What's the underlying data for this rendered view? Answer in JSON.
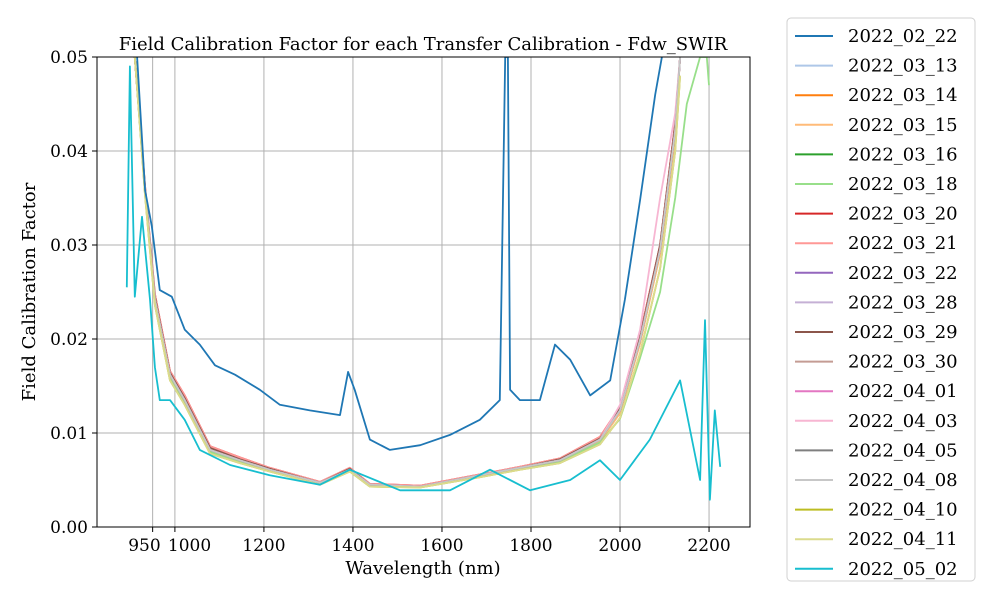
{
  "chart_data": {
    "type": "line",
    "title": "Field Calibration Factor for each Transfer Calibration - Fdw_SWIR",
    "xlabel": "Wavelength (nm)",
    "ylabel": "Field Calibration Factor",
    "xlim": [
      825,
      2292
    ],
    "ylim": [
      0,
      0.05
    ],
    "xticks": [
      950,
      1000,
      1200,
      1400,
      1600,
      1800,
      2000,
      2200
    ],
    "xtick_labels": [
      "950",
      "1000",
      "1200",
      "1400",
      "1600",
      "1800",
      "2000",
      "2200"
    ],
    "yticks": [
      0,
      0.01,
      0.02,
      0.03,
      0.04,
      0.05
    ],
    "ytick_labels": [
      "0.00",
      "0.01",
      "0.02",
      "0.03",
      "0.04",
      "0.05"
    ],
    "grid": true,
    "legend_position": "outside-right",
    "x": [
      910,
      933,
      955,
      989,
      1022,
      1079,
      1146,
      1213,
      1326,
      1393,
      1438,
      1551,
      1685,
      1775,
      1865,
      1955,
      2000,
      2045,
      2090,
      2124,
      2135
    ],
    "series": [
      {
        "name": "2022_02_22",
        "color": "#1f77b4",
        "x": [
          915,
          933,
          948,
          966,
          993,
          1022,
          1056,
          1090,
          1135,
          1191,
          1236,
          1303,
          1371,
          1389,
          1404,
          1438,
          1483,
          1551,
          1618,
          1685,
          1730,
          1742,
          1748,
          1753,
          1775,
          1820,
          1854,
          1888,
          1933,
          1978,
          2011,
          2045,
          2079,
          2094
        ],
        "y": [
          0.05,
          0.0358,
          0.032,
          0.0252,
          0.0245,
          0.021,
          0.0194,
          0.0172,
          0.0162,
          0.0146,
          0.013,
          0.0124,
          0.0119,
          0.0165,
          0.0146,
          0.0093,
          0.0082,
          0.0087,
          0.0098,
          0.0114,
          0.0135,
          0.05,
          0.05,
          0.0146,
          0.0135,
          0.0135,
          0.0194,
          0.0178,
          0.014,
          0.0156,
          0.0242,
          0.0348,
          0.046,
          0.05
        ]
      },
      {
        "name": "2022_03_13",
        "color": "#aec7e8",
        "y": [
          0.05,
          0.0358,
          0.0242,
          0.0162,
          0.0135,
          0.0082,
          0.0071,
          0.0061,
          0.0047,
          0.0061,
          0.0045,
          0.0043,
          0.0055,
          0.0063,
          0.0071,
          0.0093,
          0.0124,
          0.0199,
          0.0295,
          0.0422,
          0.05
        ]
      },
      {
        "name": "2022_03_14",
        "color": "#ff7f0e",
        "y": [
          0.05,
          0.0358,
          0.0242,
          0.0162,
          0.0135,
          0.0082,
          0.0071,
          0.0061,
          0.0047,
          0.0061,
          0.0045,
          0.0043,
          0.0055,
          0.0063,
          0.0071,
          0.0093,
          0.0124,
          0.0199,
          0.0295,
          0.0422,
          0.05
        ]
      },
      {
        "name": "2022_03_15",
        "color": "#ffbb78",
        "y": [
          0.05,
          0.0355,
          0.024,
          0.016,
          0.0133,
          0.008,
          0.007,
          0.006,
          0.0046,
          0.006,
          0.0044,
          0.0043,
          0.0054,
          0.0062,
          0.007,
          0.0091,
          0.0121,
          0.0195,
          0.029,
          0.0415,
          0.05
        ]
      },
      {
        "name": "2022_03_16",
        "color": "#2ca02c",
        "y": [
          0.05,
          0.0358,
          0.0242,
          0.0162,
          0.0135,
          0.0082,
          0.0071,
          0.0061,
          0.0047,
          0.0061,
          0.0045,
          0.0043,
          0.0055,
          0.0063,
          0.0071,
          0.0093,
          0.0124,
          0.0199,
          0.0295,
          0.0422,
          0.05
        ]
      },
      {
        "name": "2022_03_18",
        "color": "#98df8a",
        "x": [
          910,
          933,
          955,
          989,
          1022,
          1079,
          1146,
          1213,
          1326,
          1393,
          1438,
          1551,
          1685,
          1775,
          1865,
          1955,
          2000,
          2045,
          2090,
          2124,
          2150,
          2180,
          2195,
          2200
        ],
        "y": [
          0.05,
          0.0355,
          0.024,
          0.016,
          0.0133,
          0.008,
          0.007,
          0.006,
          0.0046,
          0.006,
          0.0044,
          0.0043,
          0.0054,
          0.0062,
          0.007,
          0.009,
          0.0115,
          0.018,
          0.025,
          0.035,
          0.045,
          0.05,
          0.05,
          0.047
        ]
      },
      {
        "name": "2022_03_20",
        "color": "#d62728",
        "y": [
          0.05,
          0.0362,
          0.0248,
          0.0166,
          0.014,
          0.0086,
          0.0074,
          0.0063,
          0.0048,
          0.0063,
          0.0046,
          0.0044,
          0.0056,
          0.0064,
          0.0073,
          0.0096,
          0.0128,
          0.0205,
          0.03,
          0.043,
          0.05
        ]
      },
      {
        "name": "2022_03_21",
        "color": "#ff9896",
        "y": [
          0.05,
          0.0362,
          0.0248,
          0.0166,
          0.014,
          0.0086,
          0.0074,
          0.0063,
          0.0048,
          0.0063,
          0.0046,
          0.0044,
          0.0056,
          0.0064,
          0.0073,
          0.0096,
          0.0128,
          0.0205,
          0.03,
          0.043,
          0.05
        ]
      },
      {
        "name": "2022_03_22",
        "color": "#9467bd",
        "y": [
          0.05,
          0.0358,
          0.0242,
          0.0162,
          0.0135,
          0.0082,
          0.0071,
          0.0061,
          0.0047,
          0.0061,
          0.0045,
          0.0043,
          0.0055,
          0.0063,
          0.0071,
          0.0093,
          0.0124,
          0.0199,
          0.0295,
          0.0422,
          0.05
        ]
      },
      {
        "name": "2022_03_28",
        "color": "#c5b0d5",
        "y": [
          0.05,
          0.0358,
          0.0242,
          0.0162,
          0.0135,
          0.0082,
          0.0071,
          0.0061,
          0.0047,
          0.0061,
          0.0045,
          0.0043,
          0.0055,
          0.0063,
          0.0071,
          0.0093,
          0.0124,
          0.0199,
          0.0295,
          0.0422,
          0.05
        ]
      },
      {
        "name": "2022_03_29",
        "color": "#8c564b",
        "y": [
          0.05,
          0.036,
          0.0245,
          0.0164,
          0.0137,
          0.0084,
          0.0072,
          0.0062,
          0.0047,
          0.0062,
          0.0045,
          0.0043,
          0.0055,
          0.0063,
          0.0072,
          0.0094,
          0.0126,
          0.0202,
          0.03,
          0.0428,
          0.05
        ]
      },
      {
        "name": "2022_03_30",
        "color": "#c49c94",
        "y": [
          0.05,
          0.0358,
          0.0242,
          0.0162,
          0.0135,
          0.0082,
          0.0071,
          0.0061,
          0.0047,
          0.0061,
          0.0045,
          0.0043,
          0.0055,
          0.0063,
          0.0071,
          0.0093,
          0.0124,
          0.0199,
          0.0295,
          0.0422,
          0.05
        ]
      },
      {
        "name": "2022_04_01",
        "color": "#e377c2",
        "y": [
          0.05,
          0.0358,
          0.0242,
          0.0162,
          0.0135,
          0.0082,
          0.0071,
          0.0061,
          0.0047,
          0.0061,
          0.0045,
          0.0043,
          0.0055,
          0.0063,
          0.0071,
          0.0093,
          0.0124,
          0.0199,
          0.0295,
          0.0422,
          0.05
        ]
      },
      {
        "name": "2022_04_03",
        "color": "#f7b6d2",
        "y": [
          0.05,
          0.0358,
          0.0242,
          0.0162,
          0.0135,
          0.0082,
          0.0071,
          0.0061,
          0.0047,
          0.0061,
          0.0045,
          0.0043,
          0.0055,
          0.0063,
          0.0071,
          0.0093,
          0.013,
          0.021,
          0.035,
          0.044,
          0.05
        ]
      },
      {
        "name": "2022_04_05",
        "color": "#7f7f7f",
        "y": [
          0.05,
          0.0358,
          0.0242,
          0.0162,
          0.0135,
          0.0082,
          0.0071,
          0.0061,
          0.0047,
          0.0061,
          0.0045,
          0.0043,
          0.0055,
          0.0063,
          0.0071,
          0.0093,
          0.0124,
          0.0199,
          0.0295,
          0.0422,
          0.05
        ]
      },
      {
        "name": "2022_04_08",
        "color": "#c7c7c7",
        "y": [
          0.05,
          0.0358,
          0.0242,
          0.0162,
          0.0135,
          0.0082,
          0.0071,
          0.0061,
          0.0047,
          0.0061,
          0.0045,
          0.0043,
          0.0055,
          0.0063,
          0.0071,
          0.0093,
          0.0124,
          0.0199,
          0.0295,
          0.0422,
          0.05
        ]
      },
      {
        "name": "2022_04_10",
        "color": "#bcbd22",
        "y": [
          0.05,
          0.0352,
          0.0236,
          0.0156,
          0.013,
          0.0078,
          0.0068,
          0.0059,
          0.0045,
          0.0059,
          0.0043,
          0.0042,
          0.0053,
          0.0061,
          0.0068,
          0.0088,
          0.0116,
          0.0185,
          0.0275,
          0.04,
          0.048
        ]
      },
      {
        "name": "2022_04_11",
        "color": "#dbdb8d",
        "y": [
          0.05,
          0.0352,
          0.0236,
          0.0156,
          0.013,
          0.0078,
          0.0068,
          0.0059,
          0.0045,
          0.0059,
          0.0043,
          0.0042,
          0.0053,
          0.0061,
          0.0068,
          0.0088,
          0.0116,
          0.0185,
          0.0275,
          0.04,
          0.048
        ]
      },
      {
        "name": "2022_05_02",
        "color": "#17becf",
        "x": [
          892,
          899,
          910,
          926,
          944,
          955,
          966,
          989,
          1022,
          1056,
          1124,
          1213,
          1326,
          1393,
          1506,
          1618,
          1708,
          1798,
          1888,
          1955,
          2000,
          2067,
          2135,
          2180,
          2191,
          2202,
          2213,
          2225
        ],
        "y": [
          0.0255,
          0.049,
          0.0245,
          0.033,
          0.0242,
          0.017,
          0.0135,
          0.0135,
          0.0114,
          0.0082,
          0.0066,
          0.0055,
          0.0045,
          0.0061,
          0.0039,
          0.0039,
          0.0061,
          0.0039,
          0.005,
          0.0071,
          0.005,
          0.0093,
          0.0156,
          0.005,
          0.022,
          0.0029,
          0.0124,
          0.0064
        ]
      }
    ]
  }
}
